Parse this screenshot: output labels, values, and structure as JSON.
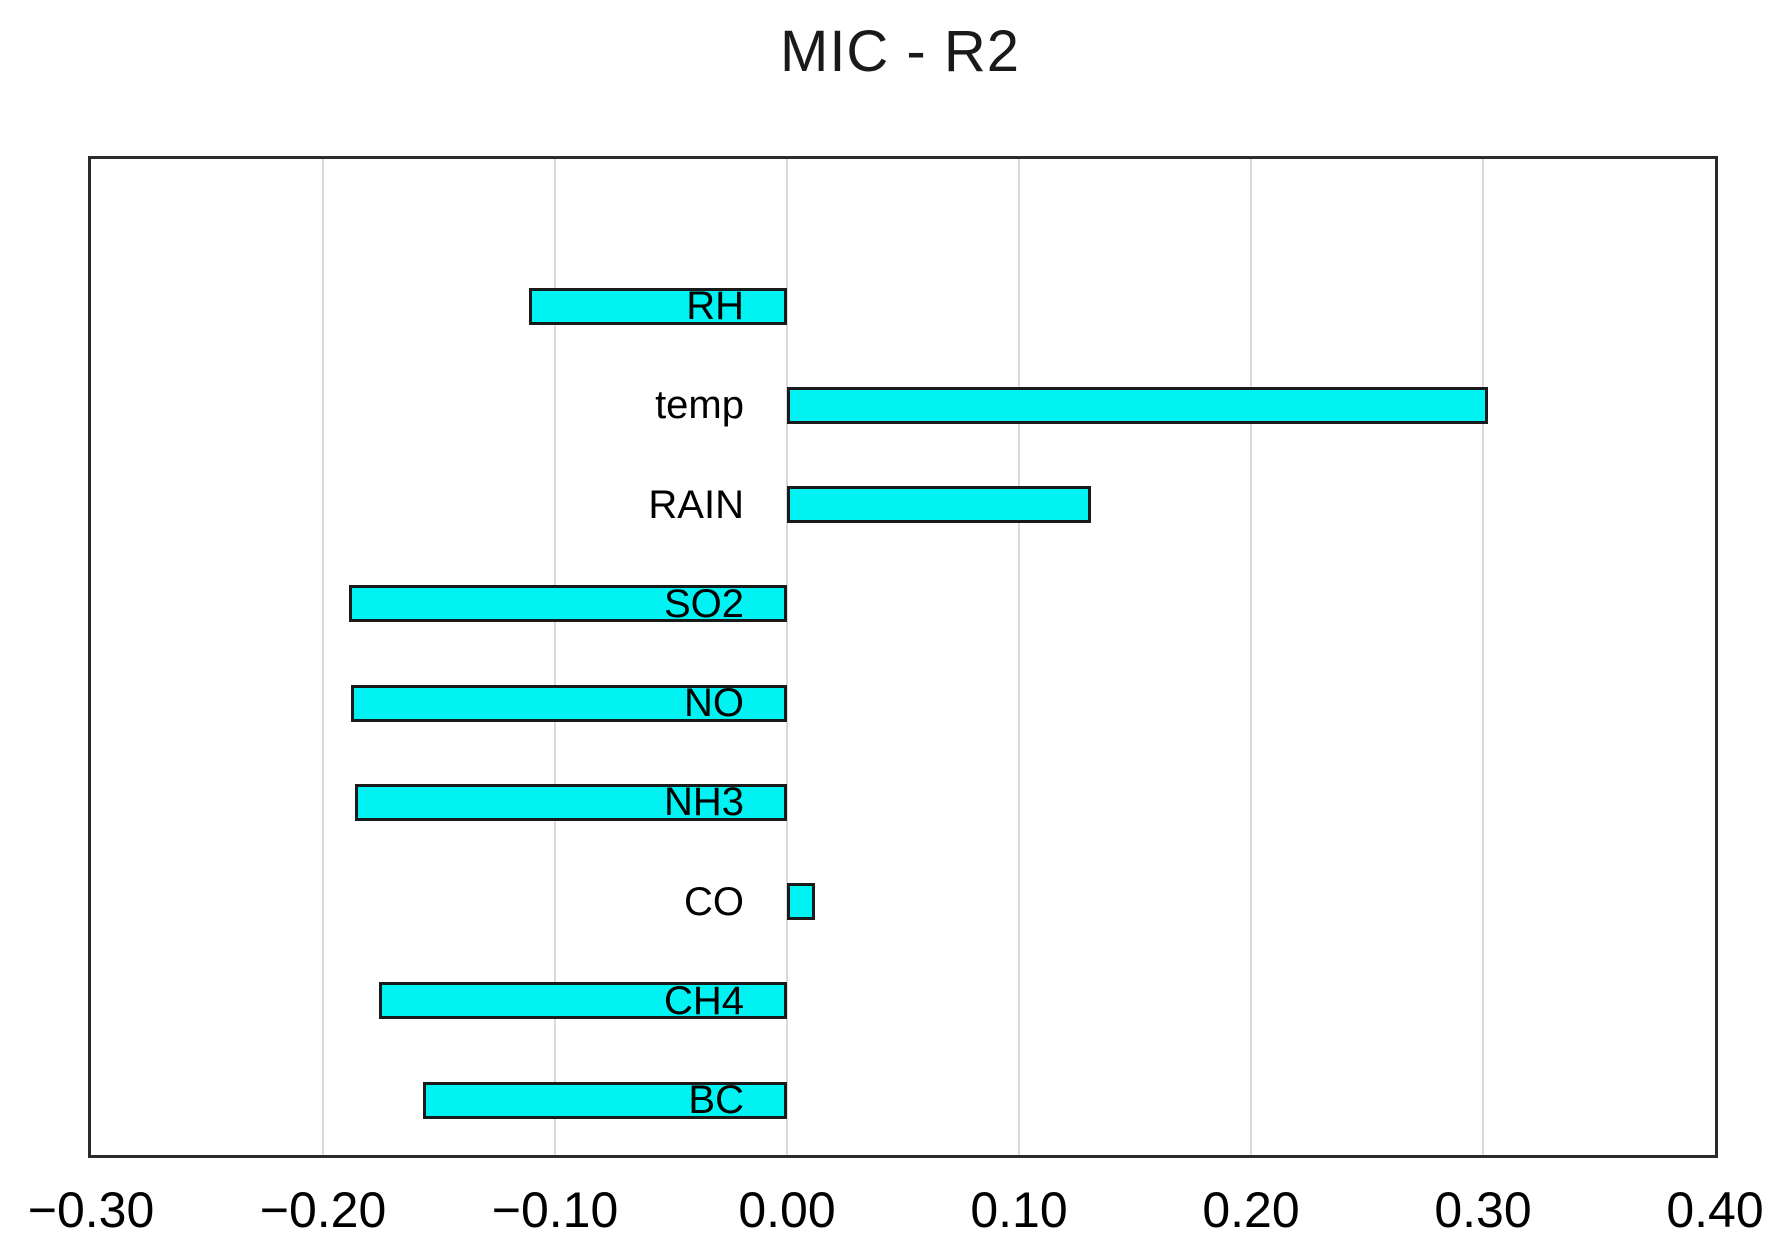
{
  "chart_data": {
    "type": "bar",
    "orientation": "horizontal",
    "title": "MIC - R2",
    "categories": [
      "RH",
      "temp",
      "RAIN",
      "SO2",
      "NO",
      "NH3",
      "CO",
      "CH4",
      "BC"
    ],
    "values": [
      -0.111,
      0.302,
      0.131,
      -0.189,
      -0.188,
      -0.186,
      0.012,
      -0.176,
      -0.157
    ],
    "xlim": [
      -0.3,
      0.4
    ],
    "xticks": [
      -0.3,
      -0.2,
      -0.1,
      0.0,
      0.1,
      0.2,
      0.3,
      0.4
    ],
    "xtick_labels": [
      "−0.30",
      "−0.20",
      "−0.10",
      "0.00",
      "0.10",
      "0.20",
      "0.30",
      "0.40"
    ],
    "xlabel": "",
    "ylabel": "",
    "grid": true,
    "legend": "none",
    "bar_color": "#00f2f2",
    "bar_border_color": "#1a1a1a",
    "gridline_color": "#d9d9d9",
    "plot_border_color": "#2b2b2b",
    "text_color": "#000000"
  }
}
